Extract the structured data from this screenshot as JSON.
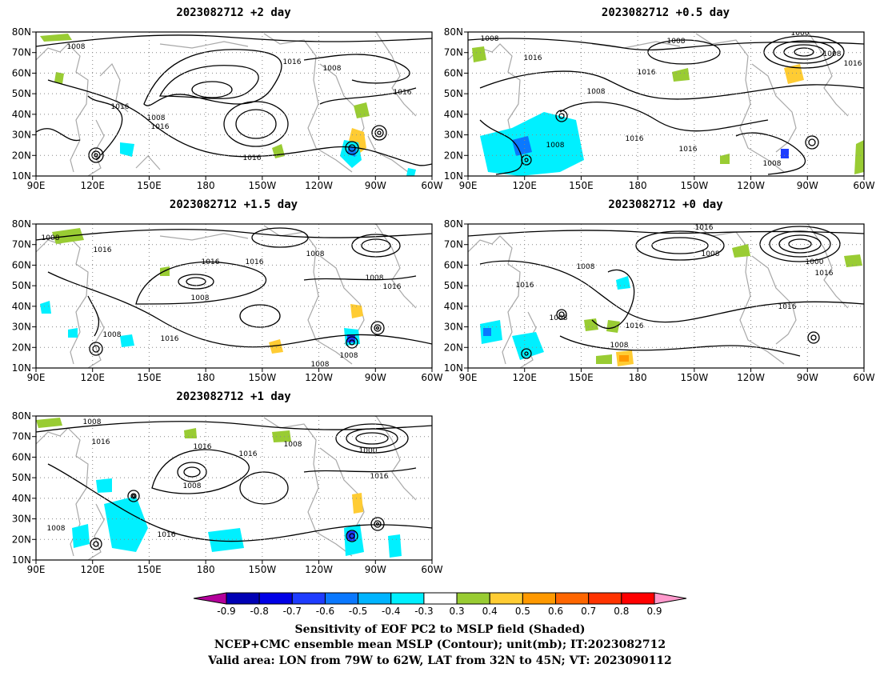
{
  "panels": [
    {
      "id": "p1",
      "title": "2023082712 +2 day",
      "labels": [
        "1008",
        "1016",
        "1008",
        "1016",
        "1008",
        "1016",
        "1016",
        "1016"
      ]
    },
    {
      "id": "p2",
      "title": "2023082712 +0.5 day",
      "labels": [
        "1008",
        "1008",
        "1016",
        "1000",
        "1008",
        "1016",
        "1008",
        "1016",
        "1008",
        "1016",
        "1016",
        "1008"
      ]
    },
    {
      "id": "p3",
      "title": "2023082712 +1.5 day",
      "labels": [
        "1008",
        "1016",
        "1016",
        "1016",
        "1008",
        "1008",
        "1016",
        "1008",
        "1008",
        "1016",
        "1008",
        "1008"
      ]
    },
    {
      "id": "p4",
      "title": "2023082712 +0 day",
      "labels": [
        "1016",
        "1008",
        "1008",
        "1016",
        "1008",
        "1000",
        "1016",
        "1016",
        "1016",
        "1008"
      ]
    },
    {
      "id": "p5",
      "title": "2023082712 +1 day",
      "labels": [
        "1008",
        "1016",
        "1016",
        "1008",
        "1008",
        "1000",
        "1016",
        "1016",
        "1016",
        "1008"
      ]
    }
  ],
  "axes": {
    "x_ticks": [
      "90E",
      "120E",
      "150E",
      "180",
      "150W",
      "120W",
      "90W",
      "60W"
    ],
    "y_ticks": [
      "80N",
      "70N",
      "60N",
      "50N",
      "40N",
      "30N",
      "20N",
      "10N"
    ]
  },
  "colorbar": {
    "ticks": [
      "-0.9",
      "-0.8",
      "-0.7",
      "-0.6",
      "-0.5",
      "-0.4",
      "-0.3",
      "0.3",
      "0.4",
      "0.5",
      "0.6",
      "0.7",
      "0.8",
      "0.9"
    ],
    "colors": [
      "#b4009b",
      "#0000b4",
      "#0000e6",
      "#1e3cff",
      "#0a78ff",
      "#00b4ff",
      "#00f0ff",
      "#ffffff",
      "#99cc33",
      "#ffcc33",
      "#ff9900",
      "#ff6600",
      "#ff3300",
      "#ff0000",
      "#ff99cc"
    ]
  },
  "caption": {
    "line1": "Sensitivity of EOF PC2 to MSLP field (Shaded)",
    "line2": "NCEP+CMC ensemble mean MSLP (Contour); unit(mb); IT:2023082712",
    "line3": "Valid area: LON from 79W to 62W, LAT from 32N to 45N; VT: 2023090112"
  }
}
